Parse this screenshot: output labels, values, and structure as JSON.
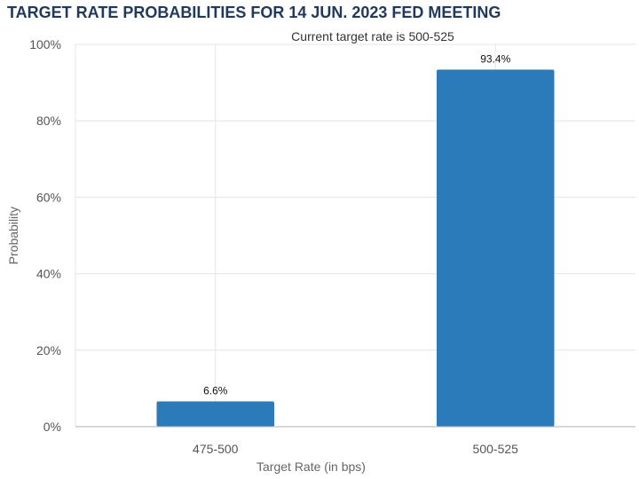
{
  "header": {
    "title": "TARGET RATE PROBABILITIES FOR 14 JUN. 2023 FED MEETING"
  },
  "chart_data": {
    "type": "bar",
    "subtitle": "Current target rate is 500-525",
    "categories": [
      "475-500",
      "500-525"
    ],
    "values": [
      6.6,
      93.4
    ],
    "value_labels": [
      "6.6%",
      "93.4%"
    ],
    "xlabel": "Target Rate (in bps)",
    "ylabel": "Probability",
    "ylim": [
      0,
      100
    ],
    "yticks": [
      0,
      20,
      40,
      60,
      80,
      100
    ],
    "ytick_labels": [
      "0%",
      "20%",
      "40%",
      "60%",
      "80%",
      "100%"
    ],
    "grid": true,
    "bar_color": "#2b7bba"
  }
}
